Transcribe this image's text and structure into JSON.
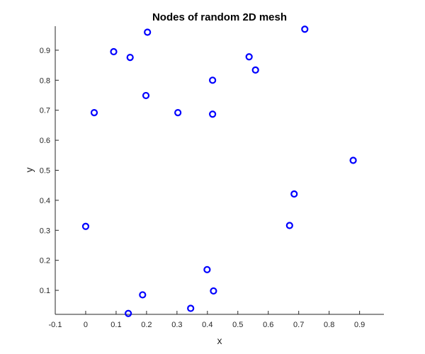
{
  "chart_data": {
    "type": "scatter",
    "title": "Nodes of random 2D mesh",
    "xlabel": "x",
    "ylabel": "y",
    "xlim": [
      -0.1,
      0.98
    ],
    "ylim": [
      0.02,
      0.98
    ],
    "xticks": [
      -0.1,
      0,
      0.1,
      0.2,
      0.3,
      0.4,
      0.5,
      0.6,
      0.7,
      0.8,
      0.9
    ],
    "xtick_labels": [
      "-0.1",
      "0",
      "0.1",
      "0.2",
      "0.3",
      "0.4",
      "0.5",
      "0.6",
      "0.7",
      "0.8",
      "0.9"
    ],
    "yticks": [
      0.1,
      0.2,
      0.3,
      0.4,
      0.5,
      0.6,
      0.7,
      0.8,
      0.9
    ],
    "ytick_labels": [
      "0.1",
      "0.2",
      "0.3",
      "0.4",
      "0.5",
      "0.6",
      "0.7",
      "0.8",
      "0.9"
    ],
    "grid": false,
    "marker": "o",
    "marker_color": "#0000ff",
    "points": [
      {
        "x": 0.203,
        "y": 0.96
      },
      {
        "x": 0.72,
        "y": 0.97
      },
      {
        "x": 0.092,
        "y": 0.895
      },
      {
        "x": 0.146,
        "y": 0.876
      },
      {
        "x": 0.537,
        "y": 0.878
      },
      {
        "x": 0.558,
        "y": 0.834
      },
      {
        "x": 0.417,
        "y": 0.8
      },
      {
        "x": 0.198,
        "y": 0.749
      },
      {
        "x": 0.028,
        "y": 0.692
      },
      {
        "x": 0.303,
        "y": 0.692
      },
      {
        "x": 0.417,
        "y": 0.687
      },
      {
        "x": 0.879,
        "y": 0.533
      },
      {
        "x": 0.685,
        "y": 0.421
      },
      {
        "x": 0.0,
        "y": 0.313
      },
      {
        "x": 0.67,
        "y": 0.316
      },
      {
        "x": 0.399,
        "y": 0.169
      },
      {
        "x": 0.42,
        "y": 0.098
      },
      {
        "x": 0.187,
        "y": 0.085
      },
      {
        "x": 0.345,
        "y": 0.04
      },
      {
        "x": 0.14,
        "y": 0.023
      }
    ]
  }
}
